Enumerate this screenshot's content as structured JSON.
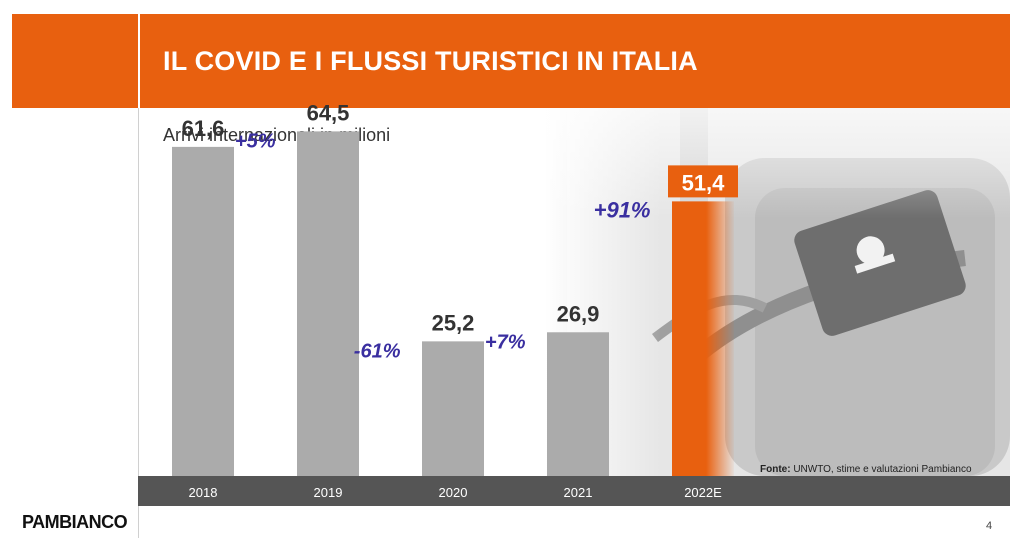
{
  "header": {
    "title": "IL COVID E I FLUSSI TURISTICI IN ITALIA"
  },
  "colors": {
    "accent": "#e8600f",
    "bar": "#ababab",
    "change": "#3a2fa0",
    "axis_band": "#555555"
  },
  "chart_data": {
    "type": "bar",
    "title": "",
    "subtitle": "Arrivi internazionali in milioni",
    "categories": [
      "2018",
      "2019",
      "2020",
      "2021",
      "2022E"
    ],
    "values": [
      61.6,
      64.5,
      25.2,
      26.9,
      51.4
    ],
    "value_labels": [
      "61,6",
      "64,5",
      "25,2",
      "26,9",
      "51,4"
    ],
    "highlight_index": 4,
    "changes": [
      {
        "between": [
          0,
          1
        ],
        "label": "+5%"
      },
      {
        "between": [
          1,
          2
        ],
        "label": "-61%"
      },
      {
        "between": [
          2,
          3
        ],
        "label": "+7%"
      },
      {
        "between": [
          3,
          4
        ],
        "label": "+91%"
      }
    ],
    "ylim": [
      0,
      70
    ],
    "grid": false,
    "legend": "none"
  },
  "footer": {
    "source_label": "Fonte:",
    "source_text": " UNWTO, stime e valutazioni Pambianco",
    "brand": "PAMBIANCO",
    "page_number": "4"
  }
}
